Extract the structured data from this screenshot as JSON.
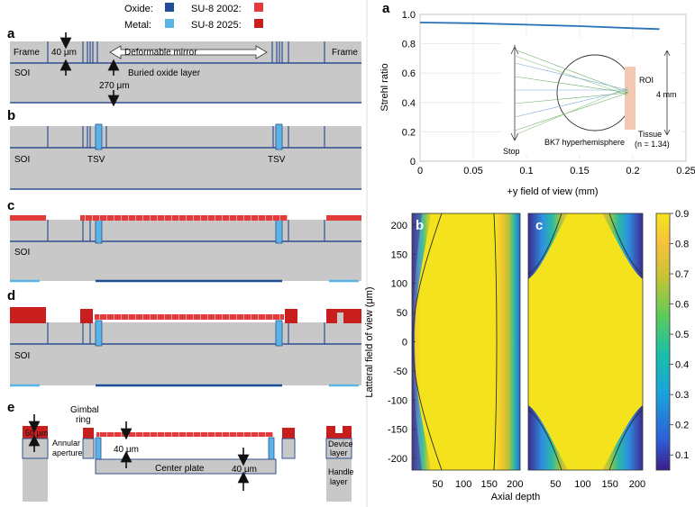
{
  "legend": {
    "oxide_label": "Oxide:",
    "metal_label": "Metal:",
    "su8_2002_label": "SU-8 2002:",
    "su8_2025_label": "SU-8 2025:"
  },
  "colors": {
    "oxide": "#1f4e96",
    "metal": "#5ab4e6",
    "su8_2002": "#e33b3b",
    "su8_2025": "#c81e1e",
    "silicon": "#c8c8c8",
    "outline": "#2e4f8f"
  },
  "panel_a_left": {
    "letter": "a",
    "frame_left": "Frame",
    "frame_right": "Frame",
    "width_40": "40 μm",
    "deformable_mirror": "Deformable mirror",
    "soi": "SOI",
    "buried_oxide": "Buried oxide layer",
    "depth_270": "270 μm"
  },
  "panel_b_left": {
    "letter": "b",
    "soi": "SOI",
    "tsv_left": "TSV",
    "tsv_right": "TSV"
  },
  "panel_c_left": {
    "letter": "c",
    "soi": "SOI"
  },
  "panel_d_left": {
    "letter": "d",
    "soi": "SOI"
  },
  "panel_e_left": {
    "letter": "e",
    "gimbal": "Gimbal",
    "ring": "ring",
    "height_50": "50 μm",
    "annular": "Annular",
    "aperture": "aperture",
    "gap_40_top": "40 μm",
    "center_plate": "Center plate",
    "gap_40_bottom": "40 μm",
    "device": "Device",
    "layer1": "layer",
    "handle": "Handle",
    "layer2": "layer"
  },
  "panel_a_right": {
    "letter": "a",
    "ylabel": "Strehl ratio",
    "xlabel": "+y field of view (mm)",
    "inset": {
      "roi": "ROI",
      "size": "4 mm",
      "stop": "Stop",
      "sphere": "BK7 hyperhemisphere",
      "tissue": "Tissue",
      "n_index": "(n = 1.34)"
    }
  },
  "panel_bc_right": {
    "letter_b": "b",
    "letter_c": "c",
    "ylabel": "Latteral field of view (μm)",
    "xlabel": "Axial depth"
  },
  "chart_data": [
    {
      "type": "line",
      "ylabel": "Strehl ratio",
      "xlabel": "+y field of view (mm)",
      "xlim": [
        0,
        0.25
      ],
      "ylim": [
        0,
        1.0
      ],
      "xticks": [
        "0",
        "0.05",
        "0.1",
        "0.15",
        "0.2",
        "0.25"
      ],
      "yticks": [
        "0",
        "0.2",
        "0.4",
        "0.6",
        "0.8",
        "1.0"
      ],
      "grid": true,
      "x": [
        0,
        0.05,
        0.1,
        0.15,
        0.2,
        0.225
      ],
      "series": [
        {
          "values": [
            0.945,
            0.94,
            0.93,
            0.92,
            0.906,
            0.9
          ]
        }
      ]
    },
    {
      "type": "heatmap",
      "xlabel": "Axial depth",
      "ylabel": "Latteral field of view (μm)",
      "panels": [
        "b",
        "c"
      ],
      "xticks_b": [
        "50",
        "100",
        "150",
        "200"
      ],
      "xticks_c": [
        "50",
        "100",
        "150",
        "200"
      ],
      "yticks": [
        "200",
        "150",
        "100",
        "50",
        "0",
        "-50",
        "-100",
        "-150",
        "-200"
      ],
      "ylim": [
        -220,
        220
      ],
      "colorbar": {
        "ticks": [
          "0.9",
          "0.8",
          "0.7",
          "0.6",
          "0.5",
          "0.4",
          "0.3",
          "0.2",
          "0.1"
        ],
        "range": [
          0.05,
          0.9
        ]
      }
    }
  ]
}
